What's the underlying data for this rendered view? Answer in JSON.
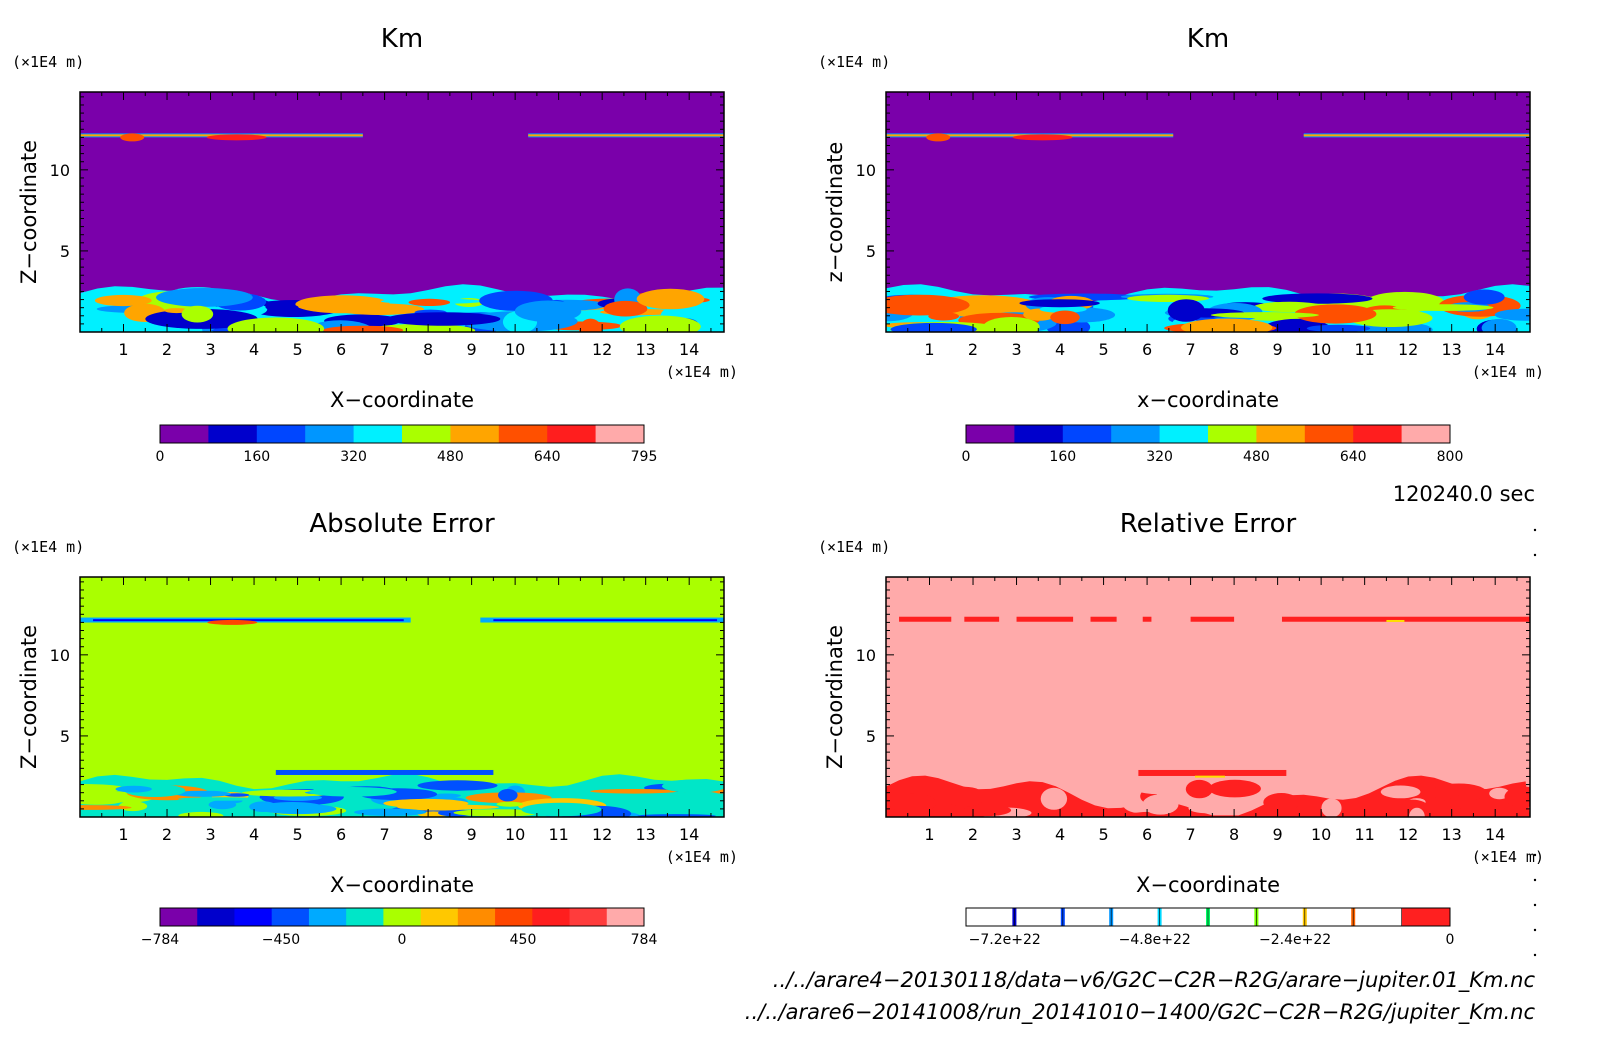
{
  "colors": {
    "km_scale": [
      "#7a00aa",
      "#0000cc",
      "#0046ff",
      "#0096ff",
      "#00f0ff",
      "#aaff00",
      "#ffa500",
      "#ff5000",
      "#ff1e1e",
      "#ffaaaa"
    ],
    "abs_scale": [
      "#7a00aa",
      "#0000cc",
      "#0000ff",
      "#0050ff",
      "#00aaff",
      "#00e6c8",
      "#aaff00",
      "#ffc800",
      "#ff8c00",
      "#ff4600",
      "#ff1e1e",
      "#ff3c3c",
      "#ffaaaa"
    ],
    "rel_band_colors": [
      "#0000cc",
      "#0046ff",
      "#0096ff",
      "#00d8ff",
      "#00ff64",
      "#78ff00",
      "#ffc800",
      "#ff6400"
    ],
    "rel_fill": "#ffaaaa",
    "rel_high": "#ff2020"
  },
  "panels": [
    {
      "id": "km_left",
      "title": "Km",
      "xlabel": "X−coordinate",
      "ylabel": "Z−coordinate",
      "x_unit": "(×1E4 m)",
      "y_unit": "(×1E4 m)",
      "background": "#7a00aa",
      "colorbar_ticks": [
        "0",
        "160",
        "320",
        "480",
        "640",
        "795"
      ]
    },
    {
      "id": "km_right",
      "title": "Km",
      "xlabel": "x−coordinate",
      "ylabel": "z−coordinate",
      "x_unit": "(×1E4 m)",
      "y_unit": "(×1E4 m)",
      "background": "#7a00aa",
      "colorbar_ticks": [
        "0",
        "160",
        "320",
        "480",
        "640",
        "800"
      ]
    },
    {
      "id": "abs_error",
      "title": "Absolute Error",
      "xlabel": "X−coordinate",
      "ylabel": "Z−coordinate",
      "x_unit": "(×1E4 m)",
      "y_unit": "(×1E4 m)",
      "background": "#aaff00",
      "colorbar_ticks": [
        "−784",
        "−450",
        "0",
        "450",
        "784"
      ]
    },
    {
      "id": "rel_error",
      "title": "Relative Error",
      "xlabel": "X−coordinate",
      "ylabel": "Z−coordinate",
      "x_unit": "(×1E4 m)",
      "y_unit": "(×1E4 m)",
      "background": "#ffaaaa",
      "colorbar_ticks": [
        "−7.2e+22",
        "−4.8e+22",
        "−2.4e+22",
        "0"
      ]
    }
  ],
  "time_label": "120240.0 sec",
  "files": [
    "../../arare4−20130118/data−v6/G2C−C2R−R2G/arare−jupiter.01_Km.nc",
    "../../arare6−20141008/run_20141010−1400/G2C−C2R−R2G/jupiter_Km.nc"
  ],
  "chart_data": [
    {
      "type": "heatmap",
      "title": "Km",
      "xlabel": "X−coordinate",
      "ylabel": "Z−coordinate",
      "x_ticks": [
        1,
        2,
        3,
        4,
        5,
        6,
        7,
        8,
        9,
        10,
        11,
        12,
        13,
        14
      ],
      "y_ticks": [
        5,
        10
      ],
      "xlim": [
        0,
        14.8
      ],
      "ylim": [
        0,
        14.8
      ],
      "color_range": [
        0,
        795
      ],
      "features": [
        {
          "region": "lower boundary layer",
          "z_top": 2.8,
          "value_range": [
            160,
            640
          ]
        },
        {
          "region": "tropopause band",
          "z": 12.1,
          "value_range": [
            320,
            640
          ]
        }
      ]
    },
    {
      "type": "heatmap",
      "title": "Km",
      "xlabel": "x−coordinate",
      "ylabel": "z−coordinate",
      "x_ticks": [
        1,
        2,
        3,
        4,
        5,
        6,
        7,
        8,
        9,
        10,
        11,
        12,
        13,
        14
      ],
      "y_ticks": [
        5,
        10
      ],
      "xlim": [
        0,
        14.8
      ],
      "ylim": [
        0,
        14.8
      ],
      "color_range": [
        0,
        800
      ],
      "features": [
        {
          "region": "lower boundary layer",
          "z_top": 2.8,
          "value_range": [
            160,
            640
          ]
        },
        {
          "region": "tropopause band",
          "z": 12.1,
          "value_range": [
            320,
            640
          ]
        }
      ]
    },
    {
      "type": "heatmap",
      "title": "Absolute Error",
      "xlabel": "X−coordinate",
      "ylabel": "Z−coordinate",
      "x_ticks": [
        1,
        2,
        3,
        4,
        5,
        6,
        7,
        8,
        9,
        10,
        11,
        12,
        13,
        14
      ],
      "y_ticks": [
        5,
        10
      ],
      "xlim": [
        0,
        14.8
      ],
      "ylim": [
        0,
        14.8
      ],
      "color_range": [
        -784,
        784
      ]
    },
    {
      "type": "heatmap",
      "title": "Relative Error",
      "xlabel": "X−coordinate",
      "ylabel": "Z−coordinate",
      "x_ticks": [
        1,
        2,
        3,
        4,
        5,
        6,
        7,
        8,
        9,
        10,
        11,
        12,
        13,
        14
      ],
      "y_ticks": [
        5,
        10
      ],
      "xlim": [
        0,
        14.8
      ],
      "ylim": [
        0,
        14.8
      ],
      "color_range": [
        -7.2e+22,
        0
      ]
    }
  ]
}
